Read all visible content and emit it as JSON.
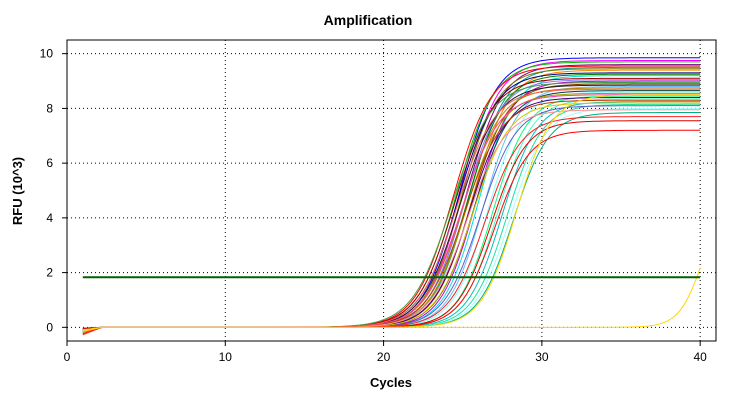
{
  "chart_data": {
    "type": "line",
    "title": "Amplification",
    "xlabel": "Cycles",
    "ylabel": "RFU (10^3)",
    "xlim": [
      0,
      41
    ],
    "ylim": [
      -0.5,
      10.5
    ],
    "xticks": [
      0,
      10,
      20,
      30,
      40
    ],
    "yticks": [
      0,
      2,
      4,
      6,
      8,
      10
    ],
    "x_tick_labels": [
      "0",
      "10",
      "20",
      "30",
      "40"
    ],
    "y_tick_labels": [
      "0",
      "2",
      "4",
      "6",
      "8",
      "10"
    ],
    "grid": "dotted",
    "legend": "none",
    "threshold": {
      "value": 1.83,
      "color": "#006400"
    },
    "curve_model": "sigmoid",
    "curve_x_range": [
      1,
      40
    ],
    "series": [
      {
        "plateau": 9.85,
        "midpoint": 24.8,
        "slope": 1.15,
        "color": "#0000ff"
      },
      {
        "plateau": 9.75,
        "midpoint": 25.0,
        "slope": 1.15,
        "color": "#ff00ff"
      },
      {
        "plateau": 9.7,
        "midpoint": 24.6,
        "slope": 1.2,
        "color": "#00c000"
      },
      {
        "plateau": 9.6,
        "midpoint": 25.2,
        "slope": 1.15,
        "color": "#800080"
      },
      {
        "plateau": 9.55,
        "midpoint": 24.4,
        "slope": 1.2,
        "color": "#ff0000"
      },
      {
        "plateau": 9.5,
        "midpoint": 25.4,
        "slope": 1.15,
        "color": "#00a0a0"
      },
      {
        "plateau": 9.45,
        "midpoint": 24.9,
        "slope": 1.15,
        "color": "#808000"
      },
      {
        "plateau": 9.4,
        "midpoint": 25.6,
        "slope": 1.15,
        "color": "#ff8000"
      },
      {
        "plateau": 9.3,
        "midpoint": 24.7,
        "slope": 1.2,
        "color": "#000080"
      },
      {
        "plateau": 9.25,
        "midpoint": 25.3,
        "slope": 1.15,
        "color": "#008000"
      },
      {
        "plateau": 9.2,
        "midpoint": 26.0,
        "slope": 1.1,
        "color": "#00e0e0"
      },
      {
        "plateau": 9.1,
        "midpoint": 24.5,
        "slope": 1.2,
        "color": "#a00000"
      },
      {
        "plateau": 9.05,
        "midpoint": 25.1,
        "slope": 1.15,
        "color": "#8080ff"
      },
      {
        "plateau": 9.0,
        "midpoint": 25.8,
        "slope": 1.1,
        "color": "#c000c0"
      },
      {
        "plateau": 8.95,
        "midpoint": 24.3,
        "slope": 1.25,
        "color": "#40a040"
      },
      {
        "plateau": 8.9,
        "midpoint": 25.5,
        "slope": 1.15,
        "color": "#804000"
      },
      {
        "plateau": 8.85,
        "midpoint": 24.8,
        "slope": 1.2,
        "color": "#202020"
      },
      {
        "plateau": 8.8,
        "midpoint": 26.3,
        "slope": 1.1,
        "color": "#60c0ff"
      },
      {
        "plateau": 8.75,
        "midpoint": 25.0,
        "slope": 1.2,
        "color": "#c08000"
      },
      {
        "plateau": 8.7,
        "midpoint": 24.6,
        "slope": 1.2,
        "color": "#ff6060"
      },
      {
        "plateau": 8.65,
        "midpoint": 25.7,
        "slope": 1.15,
        "color": "#004040"
      },
      {
        "plateau": 8.6,
        "midpoint": 26.6,
        "slope": 1.1,
        "color": "#80ffff"
      },
      {
        "plateau": 8.55,
        "midpoint": 25.2,
        "slope": 1.15,
        "color": "#a0a000"
      },
      {
        "plateau": 8.5,
        "midpoint": 24.9,
        "slope": 1.2,
        "color": "#ff40a0"
      },
      {
        "plateau": 8.45,
        "midpoint": 26.9,
        "slope": 1.1,
        "color": "#00ff80"
      },
      {
        "plateau": 8.4,
        "midpoint": 25.4,
        "slope": 1.15,
        "color": "#400080"
      },
      {
        "plateau": 8.35,
        "midpoint": 27.2,
        "slope": 1.1,
        "color": "#40ffc0"
      },
      {
        "plateau": 8.3,
        "midpoint": 25.1,
        "slope": 1.2,
        "color": "#c04000"
      },
      {
        "plateau": 8.25,
        "midpoint": 27.5,
        "slope": 1.1,
        "color": "#00c0c0"
      },
      {
        "plateau": 8.2,
        "midpoint": 25.6,
        "slope": 1.15,
        "color": "#e0c000"
      },
      {
        "plateau": 8.15,
        "midpoint": 27.8,
        "slope": 1.1,
        "color": "#20e0a0"
      },
      {
        "plateau": 8.1,
        "midpoint": 26.1,
        "slope": 1.15,
        "color": "#6060c0"
      },
      {
        "plateau": 8.0,
        "midpoint": 28.0,
        "slope": 1.1,
        "color": "#a0ffff"
      },
      {
        "plateau": 7.95,
        "midpoint": 25.3,
        "slope": 1.2,
        "color": "#ff9090"
      },
      {
        "plateau": 7.85,
        "midpoint": 28.2,
        "slope": 1.1,
        "color": "#00b080"
      },
      {
        "plateau": 7.7,
        "midpoint": 26.4,
        "slope": 1.15,
        "color": "#ff2020"
      },
      {
        "plateau": 7.55,
        "midpoint": 26.8,
        "slope": 1.1,
        "color": "#e00000"
      },
      {
        "plateau": 7.2,
        "midpoint": 27.0,
        "slope": 1.1,
        "color": "#ff0000"
      },
      {
        "plateau": 8.5,
        "midpoint": 28.4,
        "slope": 1.1,
        "color": "#ffd700"
      },
      {
        "plateau": 5.0,
        "midpoint": 40.2,
        "slope": 0.75,
        "color": "#ffd700"
      }
    ]
  }
}
